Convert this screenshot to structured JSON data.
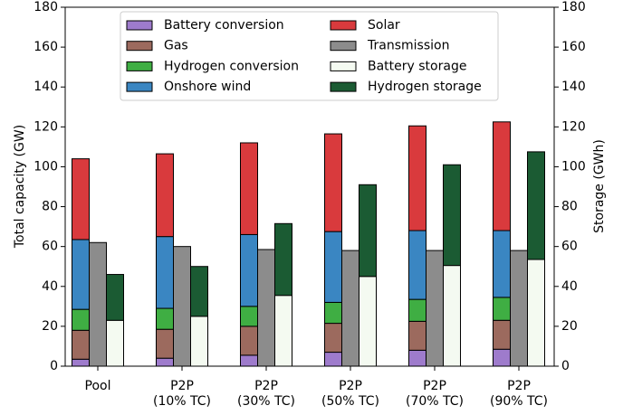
{
  "chart_data": {
    "type": "stacked_bar",
    "ylabel": "Total capacity (GW)",
    "y2label": "Storage (GWh)",
    "categories": [
      "Pool",
      "P2P\n(10% TC)",
      "P2P\n(30% TC)",
      "P2P\n(50% TC)",
      "P2P\n(70% TC)",
      "P2P\n(90% TC)"
    ],
    "ylim": [
      0,
      180
    ],
    "yticks": [
      0,
      20,
      40,
      60,
      80,
      100,
      120,
      140,
      160,
      180
    ],
    "y2lim": [
      0,
      180
    ],
    "y2ticks": [
      0,
      20,
      40,
      60,
      80,
      100,
      120,
      140,
      160,
      180
    ],
    "legend": "upper center",
    "stacks": [
      {
        "series": [
          {
            "name": "Battery conversion",
            "color": "#9e7bcc",
            "values": [
              3.5,
              4,
              5.5,
              7,
              8,
              8.5
            ]
          },
          {
            "name": "Gas",
            "color": "#9c6a5e",
            "values": [
              14.5,
              14.5,
              14.5,
              14.5,
              14.5,
              14.5
            ]
          },
          {
            "name": "Hydrogen conversion",
            "color": "#3fae43",
            "values": [
              10.5,
              10.5,
              10,
              10.5,
              11,
              11.5
            ]
          },
          {
            "name": "Onshore wind",
            "color": "#3a86c2",
            "values": [
              35,
              36,
              36,
              35.5,
              34.5,
              33.5
            ]
          },
          {
            "name": "Solar",
            "color": "#d93a3d",
            "values": [
              40.5,
              41.5,
              46,
              49,
              52.5,
              54.5
            ]
          }
        ]
      },
      {
        "series": [
          {
            "name": "Transmission",
            "color": "#8c8c8c",
            "values": [
              62,
              60,
              58.5,
              58,
              58,
              58
            ]
          }
        ]
      },
      {
        "axis": "y2",
        "series": [
          {
            "name": "Battery storage",
            "color": "#f4faf1",
            "values": [
              23,
              25,
              35.5,
              45,
              50.5,
              53.5
            ]
          },
          {
            "name": "Hydrogen storage",
            "color": "#1b5b33",
            "values": [
              23,
              25,
              36,
              46,
              50.5,
              54
            ]
          }
        ]
      }
    ]
  }
}
